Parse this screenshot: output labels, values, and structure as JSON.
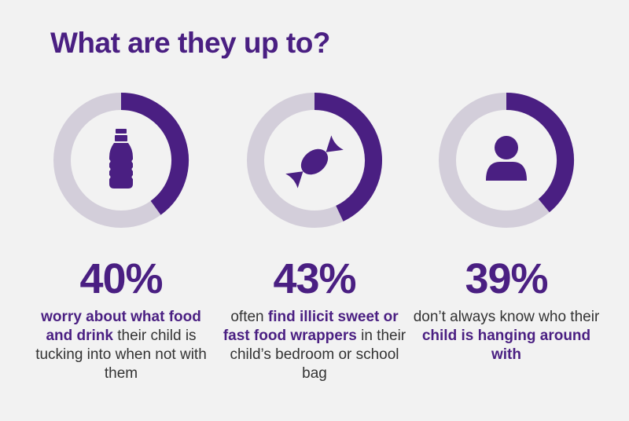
{
  "title": "What are they up to?",
  "colors": {
    "accent": "#4a1f82",
    "track": "#d3ceda",
    "text": "#333333",
    "background": "#f2f2f2"
  },
  "chart_data": {
    "type": "pie",
    "variant": "donut",
    "items": [
      {
        "value": 40,
        "label": "40%",
        "icon": "water-bottle-icon",
        "description": [
          {
            "text": "worry about what food and drink",
            "highlight": true
          },
          {
            "text": " their child is tucking into when not with them",
            "highlight": false
          }
        ]
      },
      {
        "value": 43,
        "label": "43%",
        "icon": "candy-icon",
        "description": [
          {
            "text": "often ",
            "highlight": false
          },
          {
            "text": "find illicit sweet or fast food wrappers",
            "highlight": true
          },
          {
            "text": " in their child’s bedroom or school bag",
            "highlight": false
          }
        ]
      },
      {
        "value": 39,
        "label": "39%",
        "icon": "person-icon",
        "description": [
          {
            "text": "don’t always know who their ",
            "highlight": false
          },
          {
            "text": "child is hanging around with",
            "highlight": true
          }
        ]
      }
    ]
  }
}
